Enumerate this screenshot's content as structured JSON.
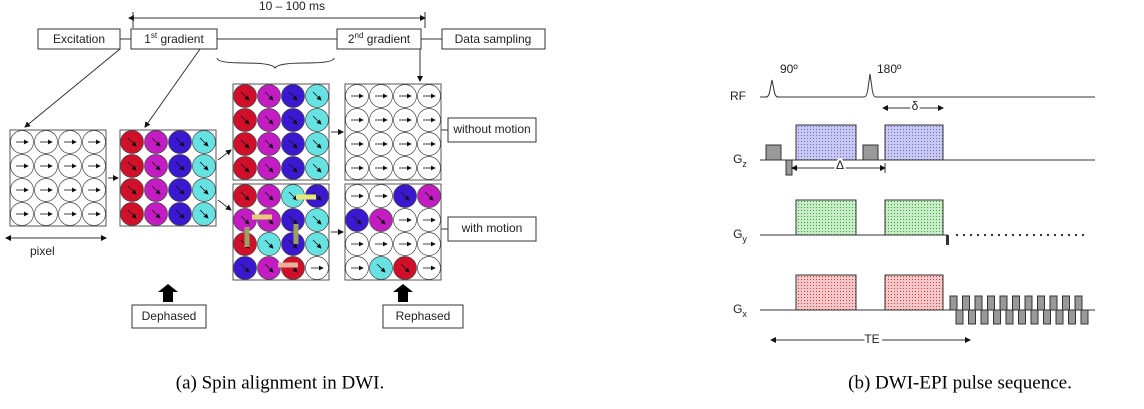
{
  "panel_a": {
    "duration": "10 – 100 ms",
    "excitation": "Excitation",
    "first_gradient": [
      "1",
      "st",
      " gradient"
    ],
    "second_gradient": [
      "2",
      "nd",
      " gradient"
    ],
    "data_sampling": "Data sampling",
    "without_motion": "without motion",
    "with_motion": "with motion",
    "pixel": "pixel",
    "dephased": "Dephased",
    "rephased": "Rephased",
    "caption": "(a) Spin alignment in DWI."
  },
  "panel_b": {
    "rf": "RF",
    "pulse_90": "90º",
    "pulse_180": "180º",
    "gz": [
      "G",
      "z"
    ],
    "gy": [
      "G",
      "y"
    ],
    "gx": [
      "G",
      "x"
    ],
    "small_delta": "δ",
    "big_delta": "Δ",
    "te": "TE",
    "caption": "(b) DWI-EPI pulse sequence."
  }
}
